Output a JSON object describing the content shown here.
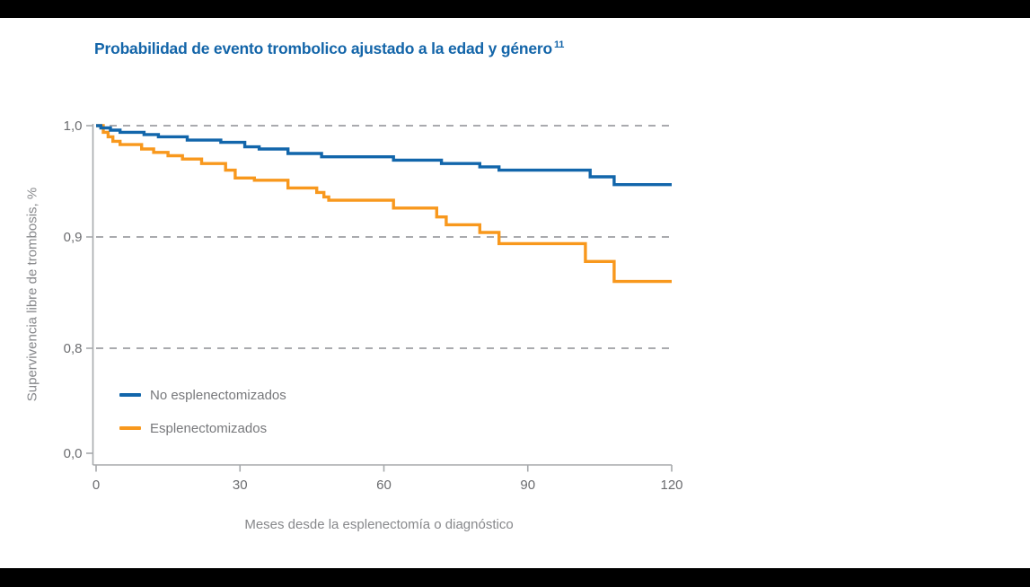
{
  "page": {
    "background": "#ffffff",
    "top_bar_color": "#000000",
    "bottom_bar_color": "#000000"
  },
  "chart_data": {
    "type": "line",
    "subtype": "kaplan-meier-step-survival",
    "title": "Probabilidad de evento trombolico ajustado a la edad y género",
    "title_reference": "11",
    "xlabel": "Meses desde la esplenectomía o diagnóstico",
    "ylabel": "Supervivencia libre de trombosis, %",
    "xlim": [
      0,
      120
    ],
    "xticks": [
      {
        "label": "0",
        "value": 0
      },
      {
        "label": "30",
        "value": 30
      },
      {
        "label": "60",
        "value": 60
      },
      {
        "label": "90",
        "value": 90
      },
      {
        "label": "120",
        "value": 120
      }
    ],
    "yticks": [
      {
        "label": "1,0",
        "value": 1.0
      },
      {
        "label": "0,9",
        "value": 0.9
      },
      {
        "label": "0,8",
        "value": 0.8
      },
      {
        "label": "0,0",
        "value": 0.0,
        "axis_break": true
      }
    ],
    "grid": "horizontal dashed lines at y = 1.0, 0.9, 0.8",
    "legend_position": "inside lower-left",
    "colors": {
      "title": "#1365a9",
      "axis": "#a7a9ac",
      "grid": "#9d9fa2",
      "tick_text": "#6b6c6f",
      "label_text": "#87888b",
      "legend_text": "#77787b"
    },
    "series": [
      {
        "name": "No esplenectomizados",
        "color": "#1266ab",
        "points": [
          [
            0,
            1.0
          ],
          [
            1,
            0.998
          ],
          [
            3,
            0.996
          ],
          [
            5,
            0.994
          ],
          [
            10,
            0.992
          ],
          [
            13,
            0.99
          ],
          [
            19,
            0.987
          ],
          [
            26,
            0.985
          ],
          [
            31,
            0.981
          ],
          [
            34,
            0.979
          ],
          [
            40,
            0.975
          ],
          [
            47,
            0.972
          ],
          [
            62,
            0.969
          ],
          [
            72,
            0.966
          ],
          [
            80,
            0.963
          ],
          [
            84,
            0.96
          ],
          [
            103,
            0.954
          ],
          [
            108,
            0.947
          ],
          [
            120,
            0.947
          ]
        ]
      },
      {
        "name": "Esplenectomizados",
        "color": "#f8981d",
        "points": [
          [
            0,
            1.0
          ],
          [
            1.5,
            0.994
          ],
          [
            2.5,
            0.99
          ],
          [
            3.5,
            0.986
          ],
          [
            5,
            0.983
          ],
          [
            9.5,
            0.979
          ],
          [
            12,
            0.976
          ],
          [
            15,
            0.973
          ],
          [
            18,
            0.97
          ],
          [
            22,
            0.966
          ],
          [
            27,
            0.96
          ],
          [
            29,
            0.953
          ],
          [
            33,
            0.951
          ],
          [
            40,
            0.944
          ],
          [
            46,
            0.94
          ],
          [
            47.5,
            0.936
          ],
          [
            48.5,
            0.933
          ],
          [
            62,
            0.926
          ],
          [
            71,
            0.918
          ],
          [
            73,
            0.911
          ],
          [
            80,
            0.904
          ],
          [
            84,
            0.894
          ],
          [
            102,
            0.878
          ],
          [
            108,
            0.86
          ],
          [
            120,
            0.86
          ]
        ]
      }
    ]
  }
}
